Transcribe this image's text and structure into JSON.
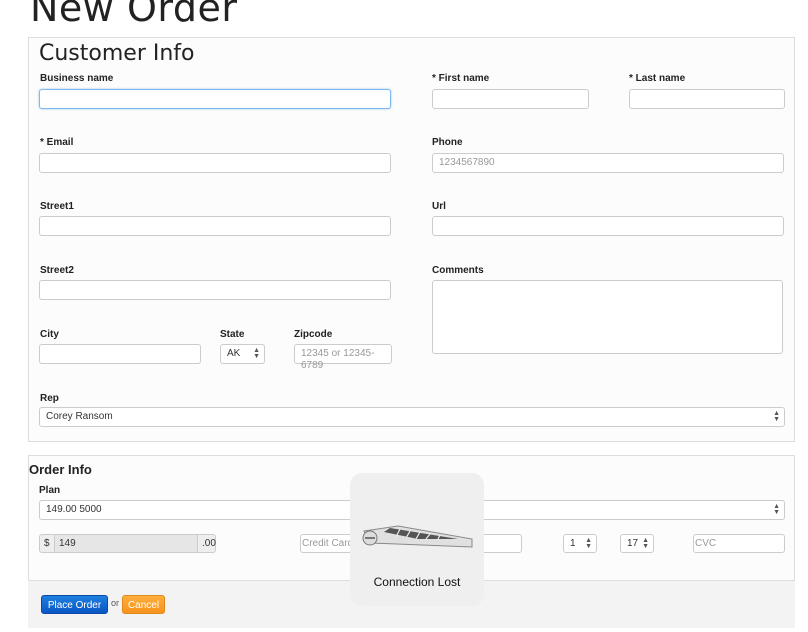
{
  "page_title": "New Order",
  "customer_info": {
    "heading": "Customer Info",
    "business_name": {
      "label": "Business name",
      "value": ""
    },
    "first_name": {
      "label": "* First name",
      "value": ""
    },
    "last_name": {
      "label": "* Last name",
      "value": ""
    },
    "email": {
      "label": "* Email",
      "value": ""
    },
    "phone": {
      "label": "Phone",
      "placeholder": "1234567890"
    },
    "street1": {
      "label": "Street1",
      "value": ""
    },
    "url": {
      "label": "Url",
      "value": ""
    },
    "street2": {
      "label": "Street2",
      "value": ""
    },
    "comments": {
      "label": "Comments",
      "value": ""
    },
    "city": {
      "label": "City",
      "value": ""
    },
    "state": {
      "label": "State",
      "value": "AK"
    },
    "zipcode": {
      "label": "Zipcode",
      "placeholder": "12345 or 12345-6789"
    },
    "rep": {
      "label": "Rep",
      "value": "Corey Ransom"
    }
  },
  "order_info": {
    "heading": "Order Info",
    "plan": {
      "label": "Plan",
      "value": "149.00 5000"
    },
    "price": {
      "prefix": "$",
      "value": "149",
      "suffix": ".00"
    },
    "credit_card": {
      "placeholder": "Credit Card"
    },
    "exp_month": "1",
    "exp_year": "17",
    "cvc": {
      "placeholder": "CVC"
    }
  },
  "actions": {
    "place_order": "Place Order",
    "or": "or",
    "cancel": "Cancel"
  },
  "overlay": {
    "message": "Connection Lost",
    "icon": "keyboard-icon"
  }
}
